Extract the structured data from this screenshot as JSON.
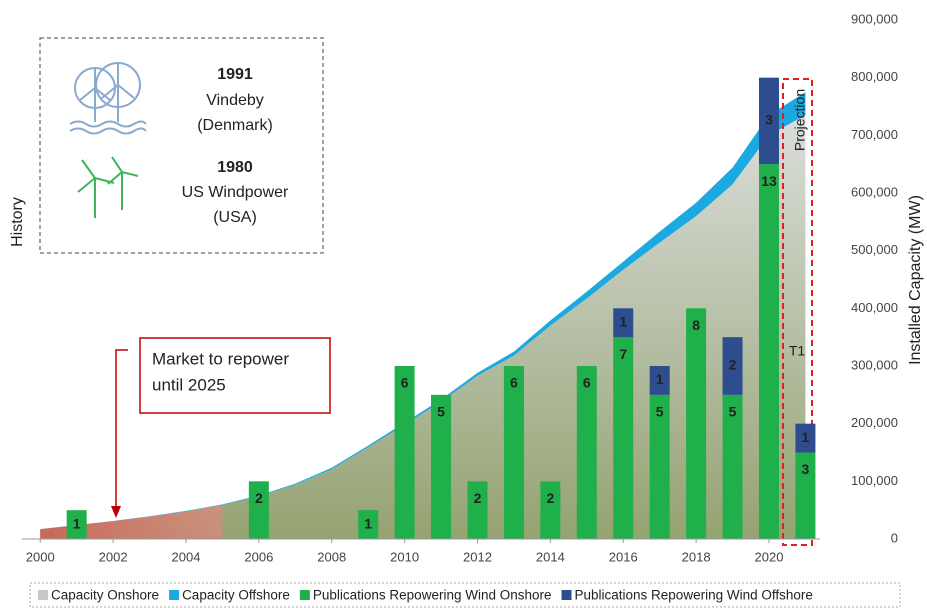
{
  "chart_data": {
    "type": "combo",
    "x": [
      2000,
      2001,
      2002,
      2003,
      2004,
      2005,
      2006,
      2007,
      2008,
      2009,
      2010,
      2011,
      2012,
      2013,
      2014,
      2015,
      2016,
      2017,
      2018,
      2019,
      2020,
      2021
    ],
    "xlim": [
      1999.5,
      2021.4
    ],
    "xticks": [
      2000,
      2002,
      2004,
      2006,
      2008,
      2010,
      2012,
      2014,
      2016,
      2018,
      2020
    ],
    "ylim": [
      0,
      900000
    ],
    "yticks": [
      0,
      {
        "value": 100000,
        "label": "100,000"
      },
      {
        "value": 200000,
        "label": "200,000"
      },
      {
        "value": 300000,
        "label": "300,000"
      },
      {
        "value": 400000,
        "label": "400,000"
      },
      {
        "value": 500000,
        "label": "500,000"
      },
      {
        "value": 600000,
        "label": "600,000"
      },
      {
        "value": 700000,
        "label": "700,000"
      },
      {
        "value": 800000,
        "label": "800,000"
      },
      {
        "value": 900000,
        "label": "900,000"
      }
    ],
    "y_label": "Installed Capacity (MW)",
    "y2lim": [
      0,
      18
    ],
    "series": [
      {
        "name": "Capacity Onshore",
        "type": "area",
        "color": "#c8c8c8",
        "values": [
          17000,
          24000,
          31000,
          39000,
          48000,
          59000,
          74000,
          94000,
          121000,
          159000,
          198000,
          238000,
          283000,
          318000,
          370000,
          417000,
          467000,
          514000,
          560000,
          615000,
          700000,
          735000
        ]
      },
      {
        "name": "Capacity Offshore",
        "type": "area",
        "color": "#1ba9e1",
        "values": [
          100,
          200,
          300,
          500,
          700,
          1000,
          1500,
          2000,
          2500,
          3000,
          3500,
          4000,
          5000,
          7000,
          9000,
          12000,
          14000,
          19000,
          23000,
          29000,
          35000,
          40000
        ]
      },
      {
        "name": "Publications Repowering Wind Onshore",
        "type": "bar",
        "axis": "y2",
        "color": "#20b04b",
        "values": [
          null,
          1,
          null,
          null,
          null,
          null,
          2,
          null,
          null,
          1,
          6,
          5,
          2,
          6,
          2,
          6,
          7,
          5,
          8,
          5,
          13,
          3
        ]
      },
      {
        "name": "Publications Repowering Wind Offshore",
        "type": "bar",
        "axis": "y2",
        "color": "#2e4d8f",
        "values": [
          null,
          null,
          null,
          null,
          null,
          null,
          null,
          null,
          null,
          null,
          null,
          null,
          null,
          null,
          null,
          null,
          1,
          1,
          null,
          2,
          3,
          1
        ]
      }
    ],
    "annotations": {
      "market": [
        "Market to repower",
        "until 2025"
      ],
      "projection": "Projection",
      "t1": "T1"
    }
  },
  "history": {
    "title": "History",
    "items": [
      {
        "year": "1991",
        "name": "Vindeby",
        "place": "(Denmark)"
      },
      {
        "year": "1980",
        "name": "US Windpower",
        "place": "(USA)"
      }
    ]
  }
}
